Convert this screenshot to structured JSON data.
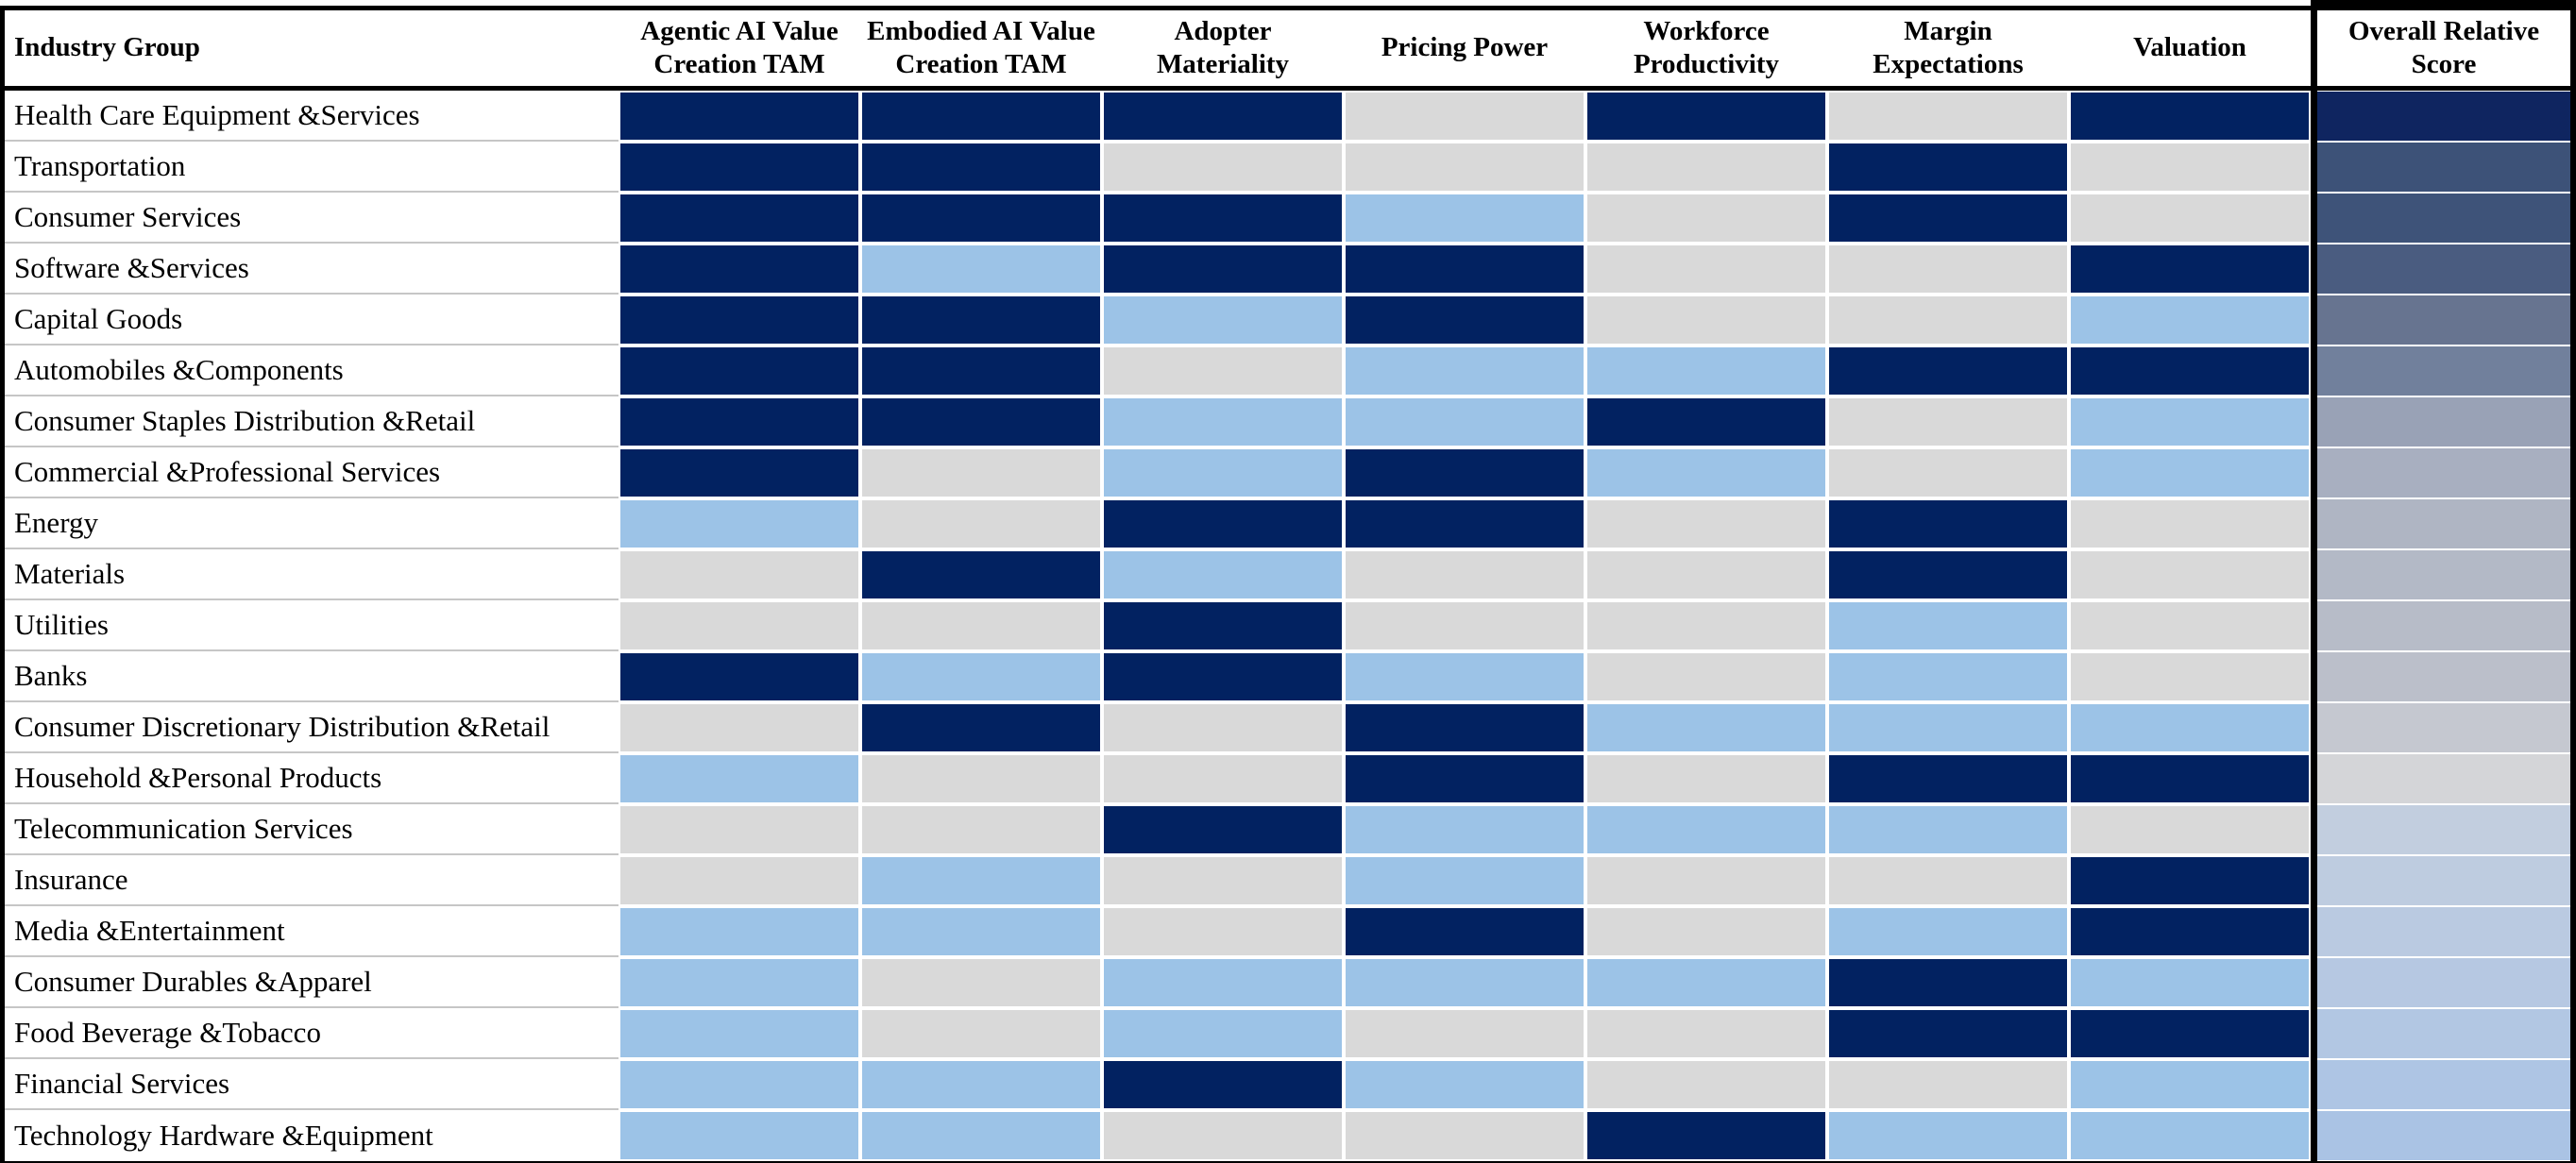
{
  "table": {
    "columns": [
      "Industry Group",
      "Agentic AI Value Creation TAM",
      "Embodied AI Value Creation TAM",
      "Adopter Materiality",
      "Pricing Power",
      "Workforce Productivity",
      "Margin Expectations",
      "Valuation",
      "Overall Relative Score"
    ],
    "cell_colors": {
      "dark": "#022261",
      "light": "#9CC3E7",
      "gray": "#D9D9D9"
    },
    "chart_data": {
      "type": "heatmap",
      "title": "",
      "x_categories": [
        "Agentic AI Value Creation TAM",
        "Embodied AI Value Creation TAM",
        "Adopter Materiality",
        "Pricing Power",
        "Workforce Productivity",
        "Margin Expectations",
        "Valuation"
      ],
      "y_categories": [
        "Health Care Equipment &Services",
        "Transportation",
        "Consumer Services",
        "Software &Services",
        "Capital Goods",
        "Automobiles &Components",
        "Consumer Staples Distribution &Retail",
        "Commercial &Professional Services",
        "Energy",
        "Materials",
        "Utilities",
        "Banks",
        "Consumer Discretionary Distribution &Retail",
        "Household &Personal Products",
        "Telecommunication Services",
        "Insurance",
        "Media &Entertainment",
        "Consumer Durables &Apparel",
        "Food Beverage &Tobacco",
        "Financial Services",
        "Technology Hardware &Equipment"
      ],
      "legend_position": "none",
      "grid": false,
      "value_encoding": "color category per cell: dark navy / light blue / gray; plus a continuous dark-to-light gradient in the Overall Relative Score column"
    },
    "rows": [
      {
        "label": "Health Care Equipment &Services",
        "cells": [
          "dark",
          "dark",
          "dark",
          "gray",
          "dark",
          "gray",
          "dark"
        ],
        "overall_color": "#0F2560"
      },
      {
        "label": "Transportation",
        "cells": [
          "dark",
          "dark",
          "gray",
          "gray",
          "gray",
          "dark",
          "gray"
        ],
        "overall_color": "#3D5278"
      },
      {
        "label": "Consumer Services",
        "cells": [
          "dark",
          "dark",
          "dark",
          "light",
          "gray",
          "dark",
          "gray"
        ],
        "overall_color": "#3E5379"
      },
      {
        "label": "Software &Services",
        "cells": [
          "dark",
          "light",
          "dark",
          "dark",
          "gray",
          "gray",
          "dark"
        ],
        "overall_color": "#4A5C80"
      },
      {
        "label": "Capital Goods",
        "cells": [
          "dark",
          "dark",
          "light",
          "dark",
          "gray",
          "gray",
          "light"
        ],
        "overall_color": "#677490"
      },
      {
        "label": "Automobiles &Components",
        "cells": [
          "dark",
          "dark",
          "gray",
          "light",
          "light",
          "dark",
          "dark"
        ],
        "overall_color": "#71809C"
      },
      {
        "label": "Consumer Staples Distribution &Retail",
        "cells": [
          "dark",
          "dark",
          "light",
          "light",
          "dark",
          "gray",
          "light"
        ],
        "overall_color": "#99A2B6"
      },
      {
        "label": "Commercial &Professional Services",
        "cells": [
          "dark",
          "gray",
          "light",
          "dark",
          "light",
          "gray",
          "light"
        ],
        "overall_color": "#A8AFC0"
      },
      {
        "label": "Energy",
        "cells": [
          "light",
          "gray",
          "dark",
          "dark",
          "gray",
          "dark",
          "gray"
        ],
        "overall_color": "#AFB5C3"
      },
      {
        "label": "Materials",
        "cells": [
          "gray",
          "dark",
          "light",
          "gray",
          "gray",
          "dark",
          "gray"
        ],
        "overall_color": "#B3B9C6"
      },
      {
        "label": "Utilities",
        "cells": [
          "gray",
          "gray",
          "dark",
          "gray",
          "gray",
          "light",
          "gray"
        ],
        "overall_color": "#B7BCC8"
      },
      {
        "label": "Banks",
        "cells": [
          "dark",
          "light",
          "dark",
          "light",
          "gray",
          "light",
          "gray"
        ],
        "overall_color": "#BBBFCA"
      },
      {
        "label": "Consumer Discretionary Distribution &Retail",
        "cells": [
          "gray",
          "dark",
          "gray",
          "dark",
          "light",
          "light",
          "light"
        ],
        "overall_color": "#C5C8D0"
      },
      {
        "label": "Household &Personal Products",
        "cells": [
          "light",
          "gray",
          "gray",
          "dark",
          "gray",
          "dark",
          "dark"
        ],
        "overall_color": "#D4D5D8"
      },
      {
        "label": "Telecommunication Services",
        "cells": [
          "gray",
          "gray",
          "dark",
          "light",
          "light",
          "light",
          "gray"
        ],
        "overall_color": "#C2CEDF"
      },
      {
        "label": "Insurance",
        "cells": [
          "gray",
          "light",
          "gray",
          "light",
          "gray",
          "gray",
          "dark"
        ],
        "overall_color": "#BECCE0"
      },
      {
        "label": "Media &Entertainment",
        "cells": [
          "light",
          "light",
          "gray",
          "dark",
          "gray",
          "light",
          "dark"
        ],
        "overall_color": "#BACAE1"
      },
      {
        "label": "Consumer Durables &Apparel",
        "cells": [
          "light",
          "gray",
          "light",
          "light",
          "light",
          "dark",
          "light"
        ],
        "overall_color": "#B6C8E2"
      },
      {
        "label": "Food Beverage &Tobacco",
        "cells": [
          "light",
          "gray",
          "light",
          "gray",
          "gray",
          "dark",
          "dark"
        ],
        "overall_color": "#B2C7E3"
      },
      {
        "label": "Financial Services",
        "cells": [
          "light",
          "light",
          "dark",
          "light",
          "gray",
          "gray",
          "light"
        ],
        "overall_color": "#AEC5E4"
      },
      {
        "label": "Technology Hardware &Equipment",
        "cells": [
          "light",
          "light",
          "gray",
          "gray",
          "dark",
          "light",
          "light"
        ],
        "overall_color": "#AAC3E4"
      }
    ]
  }
}
